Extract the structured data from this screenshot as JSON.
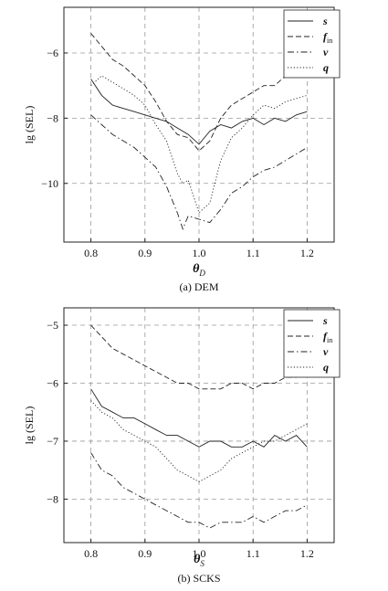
{
  "chart_data": [
    {
      "type": "line",
      "panel_label": "(a) DEM",
      "xlabel": "θ",
      "xlabel_sub": "D",
      "ylabel": "lg (SEL)",
      "xlim": [
        0.75,
        1.25
      ],
      "ylim": [
        -11.8,
        -4.6
      ],
      "xticks": [
        0.8,
        0.9,
        1.0,
        1.1,
        1.2
      ],
      "xtick_labels": [
        "0.8",
        "0.9",
        "1.0",
        "1.1",
        "1.2"
      ],
      "yticks": [
        -6,
        -8,
        -10
      ],
      "ytick_labels": [
        "−6",
        "−8",
        "−10"
      ],
      "grid": true,
      "legend_position": "top-right",
      "series": [
        {
          "name": "s",
          "style": "solid",
          "x": [
            0.8,
            0.82,
            0.84,
            0.86,
            0.88,
            0.9,
            0.92,
            0.94,
            0.96,
            0.98,
            1.0,
            1.02,
            1.04,
            1.06,
            1.08,
            1.1,
            1.12,
            1.14,
            1.16,
            1.18,
            1.2
          ],
          "y": [
            -6.8,
            -7.3,
            -7.6,
            -7.7,
            -7.8,
            -7.9,
            -8.0,
            -8.1,
            -8.3,
            -8.5,
            -8.8,
            -8.4,
            -8.2,
            -8.3,
            -8.1,
            -8.0,
            -8.2,
            -8.0,
            -8.1,
            -7.9,
            -7.8
          ]
        },
        {
          "name": "f",
          "name_sub": "in",
          "style": "dashed",
          "x": [
            0.8,
            0.82,
            0.84,
            0.86,
            0.88,
            0.9,
            0.92,
            0.94,
            0.96,
            0.98,
            1.0,
            1.02,
            1.04,
            1.06,
            1.08,
            1.1,
            1.12,
            1.14,
            1.16,
            1.18,
            1.2
          ],
          "y": [
            -5.4,
            -5.8,
            -6.2,
            -6.4,
            -6.7,
            -7.0,
            -7.5,
            -8.1,
            -8.5,
            -8.6,
            -9.0,
            -8.7,
            -8.0,
            -7.6,
            -7.4,
            -7.2,
            -7.0,
            -7.0,
            -6.7,
            -6.3,
            -5.9
          ]
        },
        {
          "name": "v",
          "style": "dashdot",
          "x": [
            0.8,
            0.82,
            0.84,
            0.86,
            0.88,
            0.9,
            0.92,
            0.94,
            0.96,
            0.97,
            0.98,
            1.0,
            1.02,
            1.04,
            1.06,
            1.08,
            1.1,
            1.12,
            1.14,
            1.16,
            1.18,
            1.2
          ],
          "y": [
            -7.9,
            -8.2,
            -8.5,
            -8.7,
            -8.9,
            -9.2,
            -9.5,
            -10.1,
            -10.9,
            -11.4,
            -11.0,
            -11.1,
            -11.2,
            -10.8,
            -10.3,
            -10.1,
            -9.8,
            -9.6,
            -9.5,
            -9.3,
            -9.1,
            -8.9
          ]
        },
        {
          "name": "q",
          "style": "dotted",
          "x": [
            0.8,
            0.82,
            0.84,
            0.86,
            0.88,
            0.9,
            0.92,
            0.94,
            0.96,
            0.97,
            0.98,
            1.0,
            1.02,
            1.04,
            1.06,
            1.08,
            1.1,
            1.12,
            1.14,
            1.16,
            1.18,
            1.2
          ],
          "y": [
            -7.0,
            -6.7,
            -6.9,
            -7.1,
            -7.3,
            -7.6,
            -8.2,
            -8.7,
            -9.7,
            -10.0,
            -9.9,
            -10.9,
            -10.6,
            -9.3,
            -8.6,
            -8.3,
            -7.9,
            -7.6,
            -7.7,
            -7.5,
            -7.4,
            -7.3
          ]
        }
      ]
    },
    {
      "type": "line",
      "panel_label": "(b) SCKS",
      "xlabel": "θ",
      "xlabel_sub": "S",
      "ylabel": "lg (SEL)",
      "xlim": [
        0.75,
        1.25
      ],
      "ylim": [
        -8.75,
        -4.7
      ],
      "xticks": [
        0.8,
        0.9,
        1.0,
        1.1,
        1.2
      ],
      "xtick_labels": [
        "0.8",
        "0.9",
        "1.0",
        "1.1",
        "1.2"
      ],
      "yticks": [
        -5,
        -6,
        -7,
        -8
      ],
      "ytick_labels": [
        "−5",
        "−6",
        "−7",
        "−8"
      ],
      "grid": true,
      "legend_position": "top-right",
      "series": [
        {
          "name": "s",
          "style": "solid",
          "x": [
            0.8,
            0.82,
            0.84,
            0.86,
            0.88,
            0.9,
            0.92,
            0.94,
            0.96,
            0.98,
            1.0,
            1.02,
            1.04,
            1.06,
            1.08,
            1.1,
            1.12,
            1.14,
            1.16,
            1.18,
            1.2
          ],
          "y": [
            -6.1,
            -6.4,
            -6.5,
            -6.6,
            -6.6,
            -6.7,
            -6.8,
            -6.9,
            -6.9,
            -7.0,
            -7.1,
            -7.0,
            -7.0,
            -7.1,
            -7.1,
            -7.0,
            -7.1,
            -6.9,
            -7.0,
            -6.9,
            -7.1
          ]
        },
        {
          "name": "f",
          "name_sub": "in",
          "style": "dashed",
          "x": [
            0.8,
            0.82,
            0.84,
            0.86,
            0.88,
            0.9,
            0.92,
            0.94,
            0.96,
            0.98,
            1.0,
            1.02,
            1.04,
            1.06,
            1.08,
            1.1,
            1.12,
            1.14,
            1.16,
            1.18,
            1.2
          ],
          "y": [
            -5.0,
            -5.2,
            -5.4,
            -5.5,
            -5.6,
            -5.7,
            -5.8,
            -5.9,
            -6.0,
            -6.0,
            -6.1,
            -6.1,
            -6.1,
            -6.0,
            -6.0,
            -6.1,
            -6.0,
            -6.0,
            -5.9,
            -5.9,
            -5.8
          ]
        },
        {
          "name": "v",
          "style": "dashdot",
          "x": [
            0.8,
            0.82,
            0.84,
            0.86,
            0.88,
            0.9,
            0.92,
            0.94,
            0.96,
            0.98,
            1.0,
            1.02,
            1.04,
            1.06,
            1.08,
            1.1,
            1.12,
            1.14,
            1.16,
            1.18,
            1.2
          ],
          "y": [
            -7.2,
            -7.5,
            -7.6,
            -7.8,
            -7.9,
            -8.0,
            -8.1,
            -8.2,
            -8.3,
            -8.4,
            -8.4,
            -8.5,
            -8.4,
            -8.4,
            -8.4,
            -8.3,
            -8.4,
            -8.3,
            -8.2,
            -8.2,
            -8.1
          ]
        },
        {
          "name": "q",
          "style": "dotted",
          "x": [
            0.8,
            0.82,
            0.84,
            0.86,
            0.88,
            0.9,
            0.92,
            0.94,
            0.96,
            0.98,
            1.0,
            1.02,
            1.04,
            1.06,
            1.08,
            1.1,
            1.12,
            1.14,
            1.16,
            1.18,
            1.2
          ],
          "y": [
            -6.3,
            -6.5,
            -6.6,
            -6.8,
            -6.9,
            -7.0,
            -7.1,
            -7.3,
            -7.5,
            -7.6,
            -7.7,
            -7.6,
            -7.5,
            -7.3,
            -7.2,
            -7.1,
            -7.0,
            -7.0,
            -6.9,
            -6.8,
            -6.7
          ]
        }
      ]
    }
  ]
}
